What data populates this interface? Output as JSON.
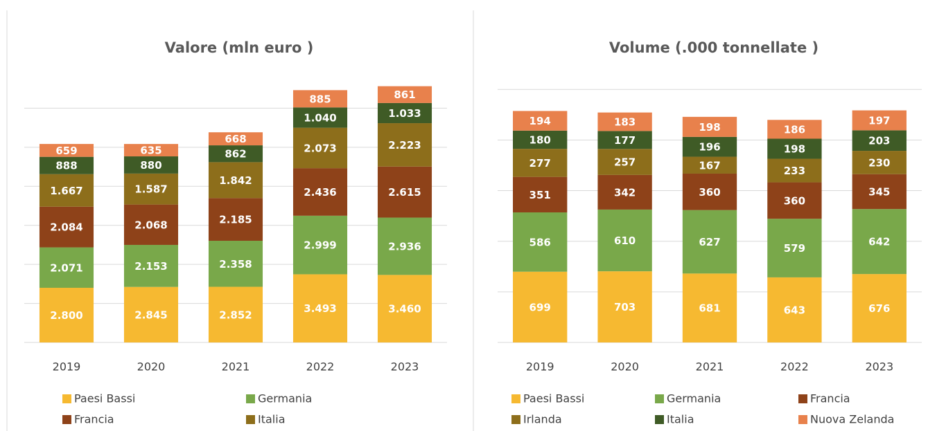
{
  "chart_data": [
    {
      "type": "stacked_bar",
      "title": "Valore (mln euro )",
      "categories": [
        "2019",
        "2020",
        "2021",
        "2022",
        "2023"
      ],
      "ylim": [
        0,
        14000
      ],
      "yticks": [
        0,
        2000,
        4000,
        6000,
        8000,
        10000,
        12000
      ],
      "grid": true,
      "series": [
        {
          "name": "Paesi Bassi",
          "color": "#f6b931",
          "values": [
            2800,
            2845,
            2852,
            3493,
            3460
          ],
          "value_labels": [
            "2.800",
            "2.845",
            "2.852",
            "3.493",
            "3.460"
          ]
        },
        {
          "name": "Germania",
          "color": "#79a84a",
          "values": [
            2071,
            2153,
            2358,
            2999,
            2936
          ],
          "value_labels": [
            "2.071",
            "2.153",
            "2.358",
            "2.999",
            "2.936"
          ]
        },
        {
          "name": "Francia",
          "color": "#8e4219",
          "values": [
            2084,
            2068,
            2185,
            2436,
            2615
          ],
          "value_labels": [
            "2.084",
            "2.068",
            "2.185",
            "2.436",
            "2.615"
          ]
        },
        {
          "name": "Italia",
          "color": "#8d6e1b",
          "values": [
            1667,
            1587,
            1842,
            2073,
            2223
          ],
          "value_labels": [
            "1.667",
            "1.587",
            "1.842",
            "2.073",
            "2.223"
          ]
        },
        {
          "color": "#3f5b26",
          "values": [
            888,
            880,
            862,
            1040,
            1033
          ],
          "value_labels": [
            "888",
            "880",
            "862",
            "1.040",
            "1.033"
          ]
        },
        {
          "color": "#e8814c",
          "values": [
            659,
            635,
            668,
            885,
            861
          ],
          "value_labels": [
            "659",
            "635",
            "668",
            "885",
            "861"
          ]
        }
      ]
    },
    {
      "type": "stacked_bar",
      "title": "Volume (.000 tonnellate )",
      "categories": [
        "2019",
        "2020",
        "2021",
        "2022",
        "2023"
      ],
      "ylim": [
        0,
        2700
      ],
      "yticks": [
        0,
        500,
        1000,
        1500,
        2000,
        2500
      ],
      "grid": true,
      "series": [
        {
          "name": "Paesi Bassi",
          "color": "#f6b931",
          "values": [
            699,
            703,
            681,
            643,
            676
          ]
        },
        {
          "name": "Germania",
          "color": "#79a84a",
          "values": [
            586,
            610,
            627,
            579,
            642
          ]
        },
        {
          "name": "Francia",
          "color": "#8e4219",
          "values": [
            351,
            342,
            360,
            360,
            345
          ]
        },
        {
          "name": "Irlanda",
          "color": "#8d6e1b",
          "values": [
            277,
            257,
            167,
            233,
            230
          ]
        },
        {
          "name": "Italia",
          "color": "#3f5b26",
          "values": [
            180,
            177,
            196,
            198,
            203
          ]
        },
        {
          "name": "Nuova Zelanda",
          "color": "#e8814c",
          "values": [
            194,
            183,
            198,
            186,
            197
          ]
        }
      ]
    }
  ]
}
